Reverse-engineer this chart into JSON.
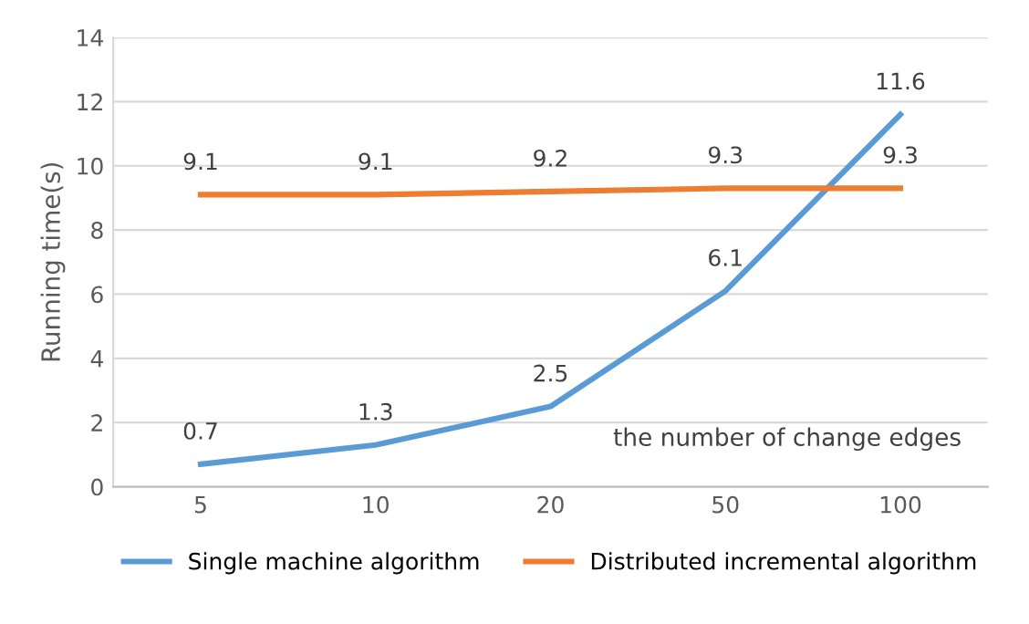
{
  "chart_data": {
    "type": "line",
    "ylabel": "Running time(s)",
    "xlabel": "the number of change edges",
    "categories": [
      "5",
      "10",
      "20",
      "50",
      "100"
    ],
    "series": [
      {
        "name": "Single machine algorithm",
        "color": "#5b9bd5",
        "values": [
          0.7,
          1.3,
          2.5,
          6.1,
          11.6
        ]
      },
      {
        "name": "Distributed incremental algorithm",
        "color": "#ed7d31",
        "values": [
          9.1,
          9.1,
          9.2,
          9.3,
          9.3
        ]
      }
    ],
    "ylim": [
      0,
      14
    ],
    "yticks": [
      0,
      2,
      4,
      6,
      8,
      10,
      12,
      14
    ],
    "grid": "y",
    "legend": "bottom",
    "data_labels": true,
    "marker": "none",
    "line_style": "solid"
  }
}
